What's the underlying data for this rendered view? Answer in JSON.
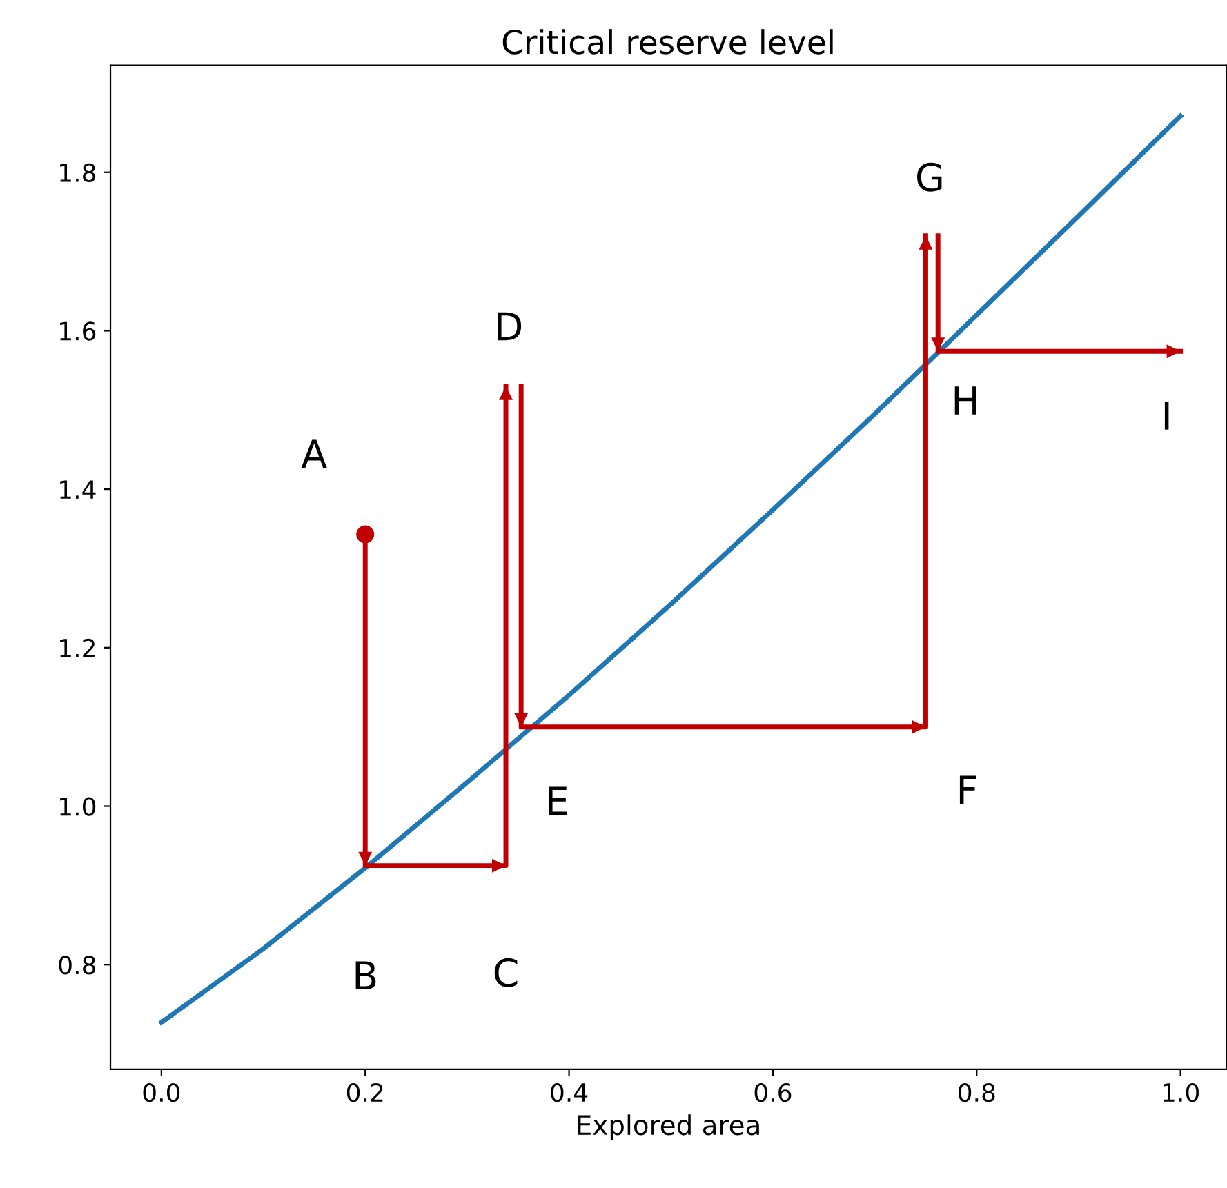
{
  "chart_data": {
    "type": "line",
    "title": "Critical reserve level",
    "xlabel": "Explored area",
    "xlim": [
      -0.05,
      1.045
    ],
    "ylim": [
      0.668,
      1.935
    ],
    "xticks": [
      {
        "value": 0,
        "label": "0.0"
      },
      {
        "value": 0.2,
        "label": "0.2"
      },
      {
        "value": 0.4,
        "label": "0.4"
      },
      {
        "value": 0.6,
        "label": "0.6"
      },
      {
        "value": 0.8,
        "label": "0.8"
      },
      {
        "value": 1,
        "label": "1.0"
      }
    ],
    "yticks": [
      0.8,
      {
        "value": 1,
        "label": "1.0"
      },
      1.2,
      1.4,
      1.6,
      1.8
    ],
    "grid": false,
    "legend": false,
    "series": [
      {
        "color": "#1f77b4",
        "x": [
          0,
          0.1,
          0.2,
          0.3,
          0.4,
          0.5,
          0.6,
          0.7,
          0.8,
          0.9,
          1.0
        ],
        "values": [
          0.727,
          0.82,
          0.922,
          1.03,
          1.14,
          1.255,
          1.374,
          1.495,
          1.62,
          1.745,
          1.871
        ]
      },
      {
        "type": "line",
        "color": "#c00000",
        "x": [
          0.2,
          0.2,
          0.338,
          0.338,
          null,
          0.353,
          0.353,
          0.75,
          0.75,
          null,
          0.762,
          0.762,
          1.0
        ],
        "values": [
          1.343,
          0.925,
          0.925,
          1.53,
          null,
          1.53,
          1.1,
          1.1,
          1.72,
          null,
          1.72,
          1.574,
          1.574
        ]
      },
      {
        "type": "scatter",
        "color": "#c00000",
        "marker": "circle",
        "x": [
          0.2
        ],
        "values": [
          1.343
        ]
      }
    ],
    "annotations": [
      {
        "text": "A",
        "x": 0.2,
        "y": 1.343
      },
      {
        "text": "B",
        "x": 0.2,
        "y": 0.925
      },
      {
        "text": "C",
        "x": 0.338,
        "y": 0.925
      },
      {
        "text": "D",
        "x": 0.338,
        "y": 1.53
      },
      {
        "text": "E",
        "x": 0.353,
        "y": 1.1
      },
      {
        "text": "F",
        "x": 0.75,
        "y": 1.1
      },
      {
        "text": "G",
        "x": 0.75,
        "y": 1.72
      },
      {
        "text": "H",
        "x": 0.762,
        "y": 1.574
      },
      {
        "text": "I",
        "x": 1.0,
        "y": 1.574
      }
    ]
  }
}
